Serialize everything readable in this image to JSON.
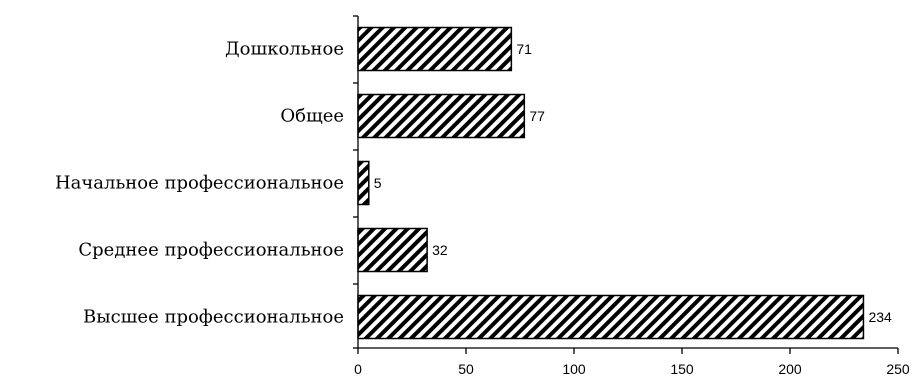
{
  "chart_data": {
    "type": "bar",
    "orientation": "horizontal",
    "categories": [
      "Дошкольное",
      "Общее",
      "Начальное профессиональное",
      "Среднее профессиональное",
      "Высшее профессиональное"
    ],
    "values": [
      71,
      77,
      5,
      32,
      234
    ],
    "value_labels": [
      "71",
      "77",
      "5",
      "32",
      "234"
    ],
    "xlim": [
      0,
      250
    ],
    "xticks": [
      0,
      50,
      100,
      150,
      200,
      250
    ],
    "xtick_labels": [
      "0",
      "50",
      "100",
      "150",
      "200",
      "250"
    ],
    "title": "",
    "xlabel": "",
    "ylabel": "",
    "grid": false,
    "bar_fill": "diagonal-hatch",
    "bar_color": "#000000"
  }
}
